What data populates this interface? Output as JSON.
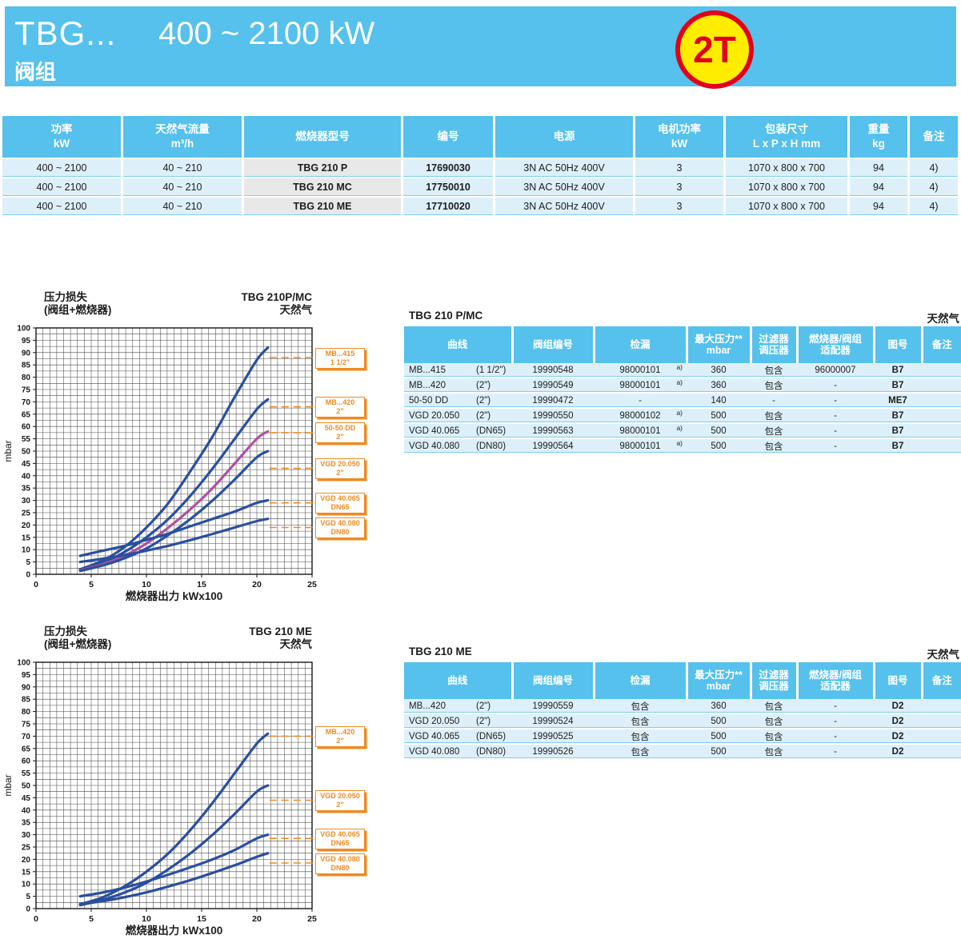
{
  "header": {
    "model": "TBG...",
    "power_range": "400 ~ 2100 kW",
    "subtitle": "阀组",
    "badge": "2T"
  },
  "colors": {
    "banner_blue": "#55c1ec",
    "row_blue": "#ddf0fa",
    "gray_cell": "#e8e8e8",
    "orange": "#ef8a21",
    "curve_blue": "#2a4f9f",
    "curve_purple": "#b0519e",
    "badge_yellow": "#ffed00",
    "badge_red": "#e1001a"
  },
  "main_table": {
    "headers": [
      "功率\nkW",
      "天然气流量\nm³/h",
      "燃烧器型号",
      "编号",
      "电源",
      "电机功率\nkW",
      "包装尺寸\nL x P x H  mm",
      "重量\nkg",
      "备注"
    ],
    "rows": [
      [
        "400 ~ 2100",
        "40 ~ 210",
        "TBG 210 P",
        "17690030",
        "3N AC 50Hz 400V",
        "3",
        "1070 x 800 x 700",
        "94",
        "4)"
      ],
      [
        "400 ~ 2100",
        "40 ~ 210",
        "TBG 210 MC",
        "17750010",
        "3N AC 50Hz 400V",
        "3",
        "1070 x 800 x 700",
        "94",
        "4)"
      ],
      [
        "400 ~ 2100",
        "40 ~ 210",
        "TBG 210 ME",
        "17710020",
        "3N AC 50Hz 400V",
        "3",
        "1070 x 800 x 700",
        "94",
        "4)"
      ]
    ]
  },
  "chart_data": [
    {
      "type": "line",
      "title_left": [
        "压力损失",
        "(阀组+燃烧器)"
      ],
      "title_right": [
        "TBG 210P/MC",
        "天然气"
      ],
      "xlabel": "燃烧器出力  kWx100",
      "ylabel": "mbar",
      "xlim": [
        0,
        25
      ],
      "ylim": [
        0,
        100
      ],
      "x_ticks": [
        0,
        5,
        10,
        15,
        20,
        25
      ],
      "y_tick_step": 5,
      "x": [
        4,
        6,
        8,
        10,
        12,
        14,
        16,
        18,
        20,
        21
      ],
      "series": [
        {
          "name": "MB...415 1 1/2\"",
          "color": "#2a4f9f",
          "values": [
            2,
            5.5,
            11,
            19,
            29,
            42,
            56,
            72,
            87,
            92
          ]
        },
        {
          "name": "MB...420 2\"",
          "color": "#2a4f9f",
          "values": [
            1.8,
            4.5,
            9,
            15,
            22.5,
            32,
            43,
            55,
            67,
            71
          ]
        },
        {
          "name": "50-50 DD 2\"",
          "color": "#b0519e",
          "values": [
            1.6,
            4,
            7.5,
            12.5,
            19,
            26.5,
            35,
            45,
            55,
            58
          ]
        },
        {
          "name": "VGD 20.050 2\"",
          "color": "#2a4f9f",
          "values": [
            1.4,
            3.5,
            6.5,
            10.5,
            16,
            22.5,
            30,
            38.5,
            47.5,
            50
          ]
        },
        {
          "name": "VGD 40.065 DN65",
          "color": "#2a4f9f",
          "values": [
            7.5,
            9.5,
            11.5,
            14,
            16.5,
            19.5,
            22.5,
            25.5,
            29,
            30
          ]
        },
        {
          "name": "VGD 40.080 DN80",
          "color": "#2a4f9f",
          "values": [
            5,
            6.3,
            7.8,
            9.6,
            11.6,
            13.9,
            16.4,
            19,
            21.6,
            22.5
          ]
        }
      ],
      "labels": [
        {
          "line1": "MB...415",
          "line2": "1 1/2\"",
          "value": 88
        },
        {
          "line1": "MB...420",
          "line2": "2\"",
          "value": 68
        },
        {
          "line1": "50-50 DD",
          "line2": "2\"",
          "value": 57.5
        },
        {
          "line1": "VGD 20.050",
          "line2": "2\"",
          "value": 43
        },
        {
          "line1": "VGD 40.065",
          "line2": "DN65",
          "value": 29
        },
        {
          "line1": "VGD 40.080",
          "line2": "DN80",
          "value": 19
        }
      ]
    },
    {
      "type": "line",
      "title_left": [
        "压力损失",
        "(阀组+燃烧器)"
      ],
      "title_right": [
        "TBG 210 ME",
        "天然气"
      ],
      "xlabel": "燃烧器出力  kWx100",
      "ylabel": "mbar",
      "xlim": [
        0,
        25
      ],
      "ylim": [
        0,
        100
      ],
      "x_ticks": [
        0,
        5,
        10,
        15,
        20,
        25
      ],
      "y_tick_step": 5,
      "x": [
        4,
        6,
        8,
        10,
        12,
        14,
        16,
        18,
        20,
        21
      ],
      "series": [
        {
          "name": "MB...420 2\"",
          "color": "#2a4f9f",
          "values": [
            1.8,
            4.5,
            9,
            15,
            22.5,
            32,
            43,
            55,
            67,
            71
          ]
        },
        {
          "name": "VGD 20.050 2\"",
          "color": "#2a4f9f",
          "values": [
            1.4,
            3.5,
            6.5,
            10.5,
            16,
            22.5,
            30,
            38.5,
            47.5,
            50
          ]
        },
        {
          "name": "VGD 40.065 DN65",
          "color": "#2a4f9f",
          "values": [
            5,
            6.5,
            8.5,
            11,
            13.8,
            16.8,
            20,
            23.8,
            28.5,
            30
          ]
        },
        {
          "name": "VGD 40.080 DN80",
          "color": "#2a4f9f",
          "values": [
            1.8,
            3,
            4.6,
            6.6,
            9,
            11.6,
            14.5,
            17.6,
            21,
            22.5
          ]
        }
      ],
      "labels": [
        {
          "line1": "MB...420",
          "line2": "2\"",
          "value": 70
        },
        {
          "line1": "VGD 20.050",
          "line2": "2\"",
          "value": 44
        },
        {
          "line1": "VGD 40.065",
          "line2": "DN65",
          "value": 28.5
        },
        {
          "line1": "VGD 40.080",
          "line2": "DN80",
          "value": 18.5
        }
      ]
    }
  ],
  "tables": [
    {
      "title": "TBG 210 P/MC",
      "gas": "天然气",
      "headers": [
        "曲线",
        "阀组编号",
        "检漏",
        "最大压力**\nmbar",
        "过滤器\n调压器",
        "燃烧器/阀组\n适配器",
        "图号",
        "备注"
      ],
      "rows": [
        {
          "curve": "MB...415",
          "size": "(1 1/2\")",
          "code": "19990548",
          "leak": "98000101",
          "leak_sup": "a)",
          "pmax": "360",
          "filter": "包含",
          "adapter": "96000007",
          "fig": "B7",
          "note": ""
        },
        {
          "curve": "MB...420",
          "size": "(2\")",
          "code": "19990549",
          "leak": "98000101",
          "leak_sup": "a)",
          "pmax": "360",
          "filter": "包含",
          "adapter": "-",
          "fig": "B7",
          "note": ""
        },
        {
          "curve": "50-50  DD",
          "size": "(2\")",
          "code": "19990472",
          "leak": "-",
          "leak_sup": "",
          "pmax": "140",
          "filter": "-",
          "adapter": "-",
          "fig": "ME7",
          "note": ""
        },
        {
          "curve": "VGD 20.050",
          "size": "(2\")",
          "code": "19990550",
          "leak": "98000102",
          "leak_sup": "a)",
          "pmax": "500",
          "filter": "包含",
          "adapter": "-",
          "fig": "B7",
          "note": ""
        },
        {
          "curve": "VGD 40.065",
          "size": "(DN65)",
          "code": "19990563",
          "leak": "98000101",
          "leak_sup": "a)",
          "pmax": "500",
          "filter": "包含",
          "adapter": "-",
          "fig": "B7",
          "note": ""
        },
        {
          "curve": "VGD 40.080",
          "size": "(DN80)",
          "code": "19990564",
          "leak": "98000101",
          "leak_sup": "a)",
          "pmax": "500",
          "filter": "包含",
          "adapter": "-",
          "fig": "B7",
          "note": ""
        }
      ]
    },
    {
      "title": "TBG 210 ME",
      "gas": "天然气",
      "headers": [
        "曲线",
        "阀组编号",
        "检漏",
        "最大压力**\nmbar",
        "过滤器\n调压器",
        "燃烧器/阀组\n适配器",
        "图号",
        "备注"
      ],
      "rows": [
        {
          "curve": "MB...420",
          "size": "(2\")",
          "code": "19990559",
          "leak": "包含",
          "leak_sup": "",
          "pmax": "360",
          "filter": "包含",
          "adapter": "-",
          "fig": "D2",
          "note": ""
        },
        {
          "curve": "VGD 20.050",
          "size": "(2\")",
          "code": "19990524",
          "leak": "包含",
          "leak_sup": "",
          "pmax": "500",
          "filter": "包含",
          "adapter": "-",
          "fig": "D2",
          "note": ""
        },
        {
          "curve": "VGD 40.065",
          "size": "(DN65)",
          "code": "19990525",
          "leak": "包含",
          "leak_sup": "",
          "pmax": "500",
          "filter": "包含",
          "adapter": "-",
          "fig": "D2",
          "note": ""
        },
        {
          "curve": "VGD 40.080",
          "size": "(DN80)",
          "code": "19990526",
          "leak": "包含",
          "leak_sup": "",
          "pmax": "500",
          "filter": "包含",
          "adapter": "-",
          "fig": "D2",
          "note": ""
        }
      ]
    }
  ]
}
